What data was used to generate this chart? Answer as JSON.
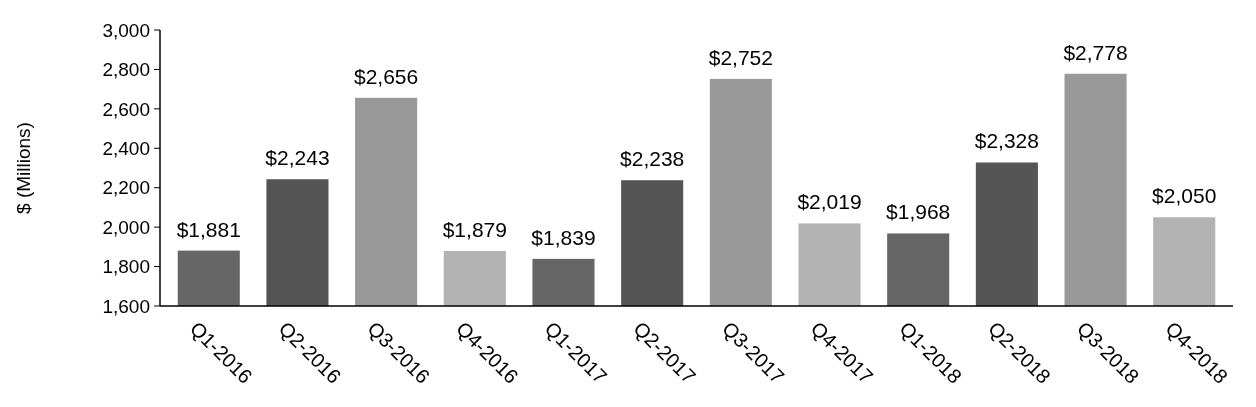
{
  "chart_data": {
    "type": "bar",
    "ylabel": "$ (Millions)",
    "categories": [
      "Q1-2016",
      "Q2-2016",
      "Q3-2016",
      "Q4-2016",
      "Q1-2017",
      "Q2-2017",
      "Q3-2017",
      "Q4-2017",
      "Q1-2018",
      "Q2-2018",
      "Q3-2018",
      "Q4-2018"
    ],
    "values": [
      1881,
      2243,
      2656,
      1879,
      1839,
      2238,
      2752,
      2019,
      1968,
      2328,
      2778,
      2050
    ],
    "colors": [
      "#666666",
      "#555555",
      "#999999",
      "#b3b3b3",
      "#666666",
      "#555555",
      "#999999",
      "#b3b3b3",
      "#666666",
      "#555555",
      "#999999",
      "#b3b3b3"
    ],
    "value_labels": [
      "$1,881",
      "$2,243",
      "$2,656",
      "$1,879",
      "$1,839",
      "$2,238",
      "$2,752",
      "$2,019",
      "$1,968",
      "$2,328",
      "$2,778",
      "$2,050"
    ],
    "ylim": [
      1600,
      3000
    ],
    "yticks": [
      {
        "value": 1600,
        "label": "1,600"
      },
      {
        "value": 1800,
        "label": "1,800"
      },
      {
        "value": 2000,
        "label": "2,000"
      },
      {
        "value": 2200,
        "label": "2,200"
      },
      {
        "value": 2400,
        "label": "2,400"
      },
      {
        "value": 2600,
        "label": "2,600"
      },
      {
        "value": 2800,
        "label": "2,800"
      },
      {
        "value": 3000,
        "label": "3,000"
      }
    ],
    "grid": false
  }
}
